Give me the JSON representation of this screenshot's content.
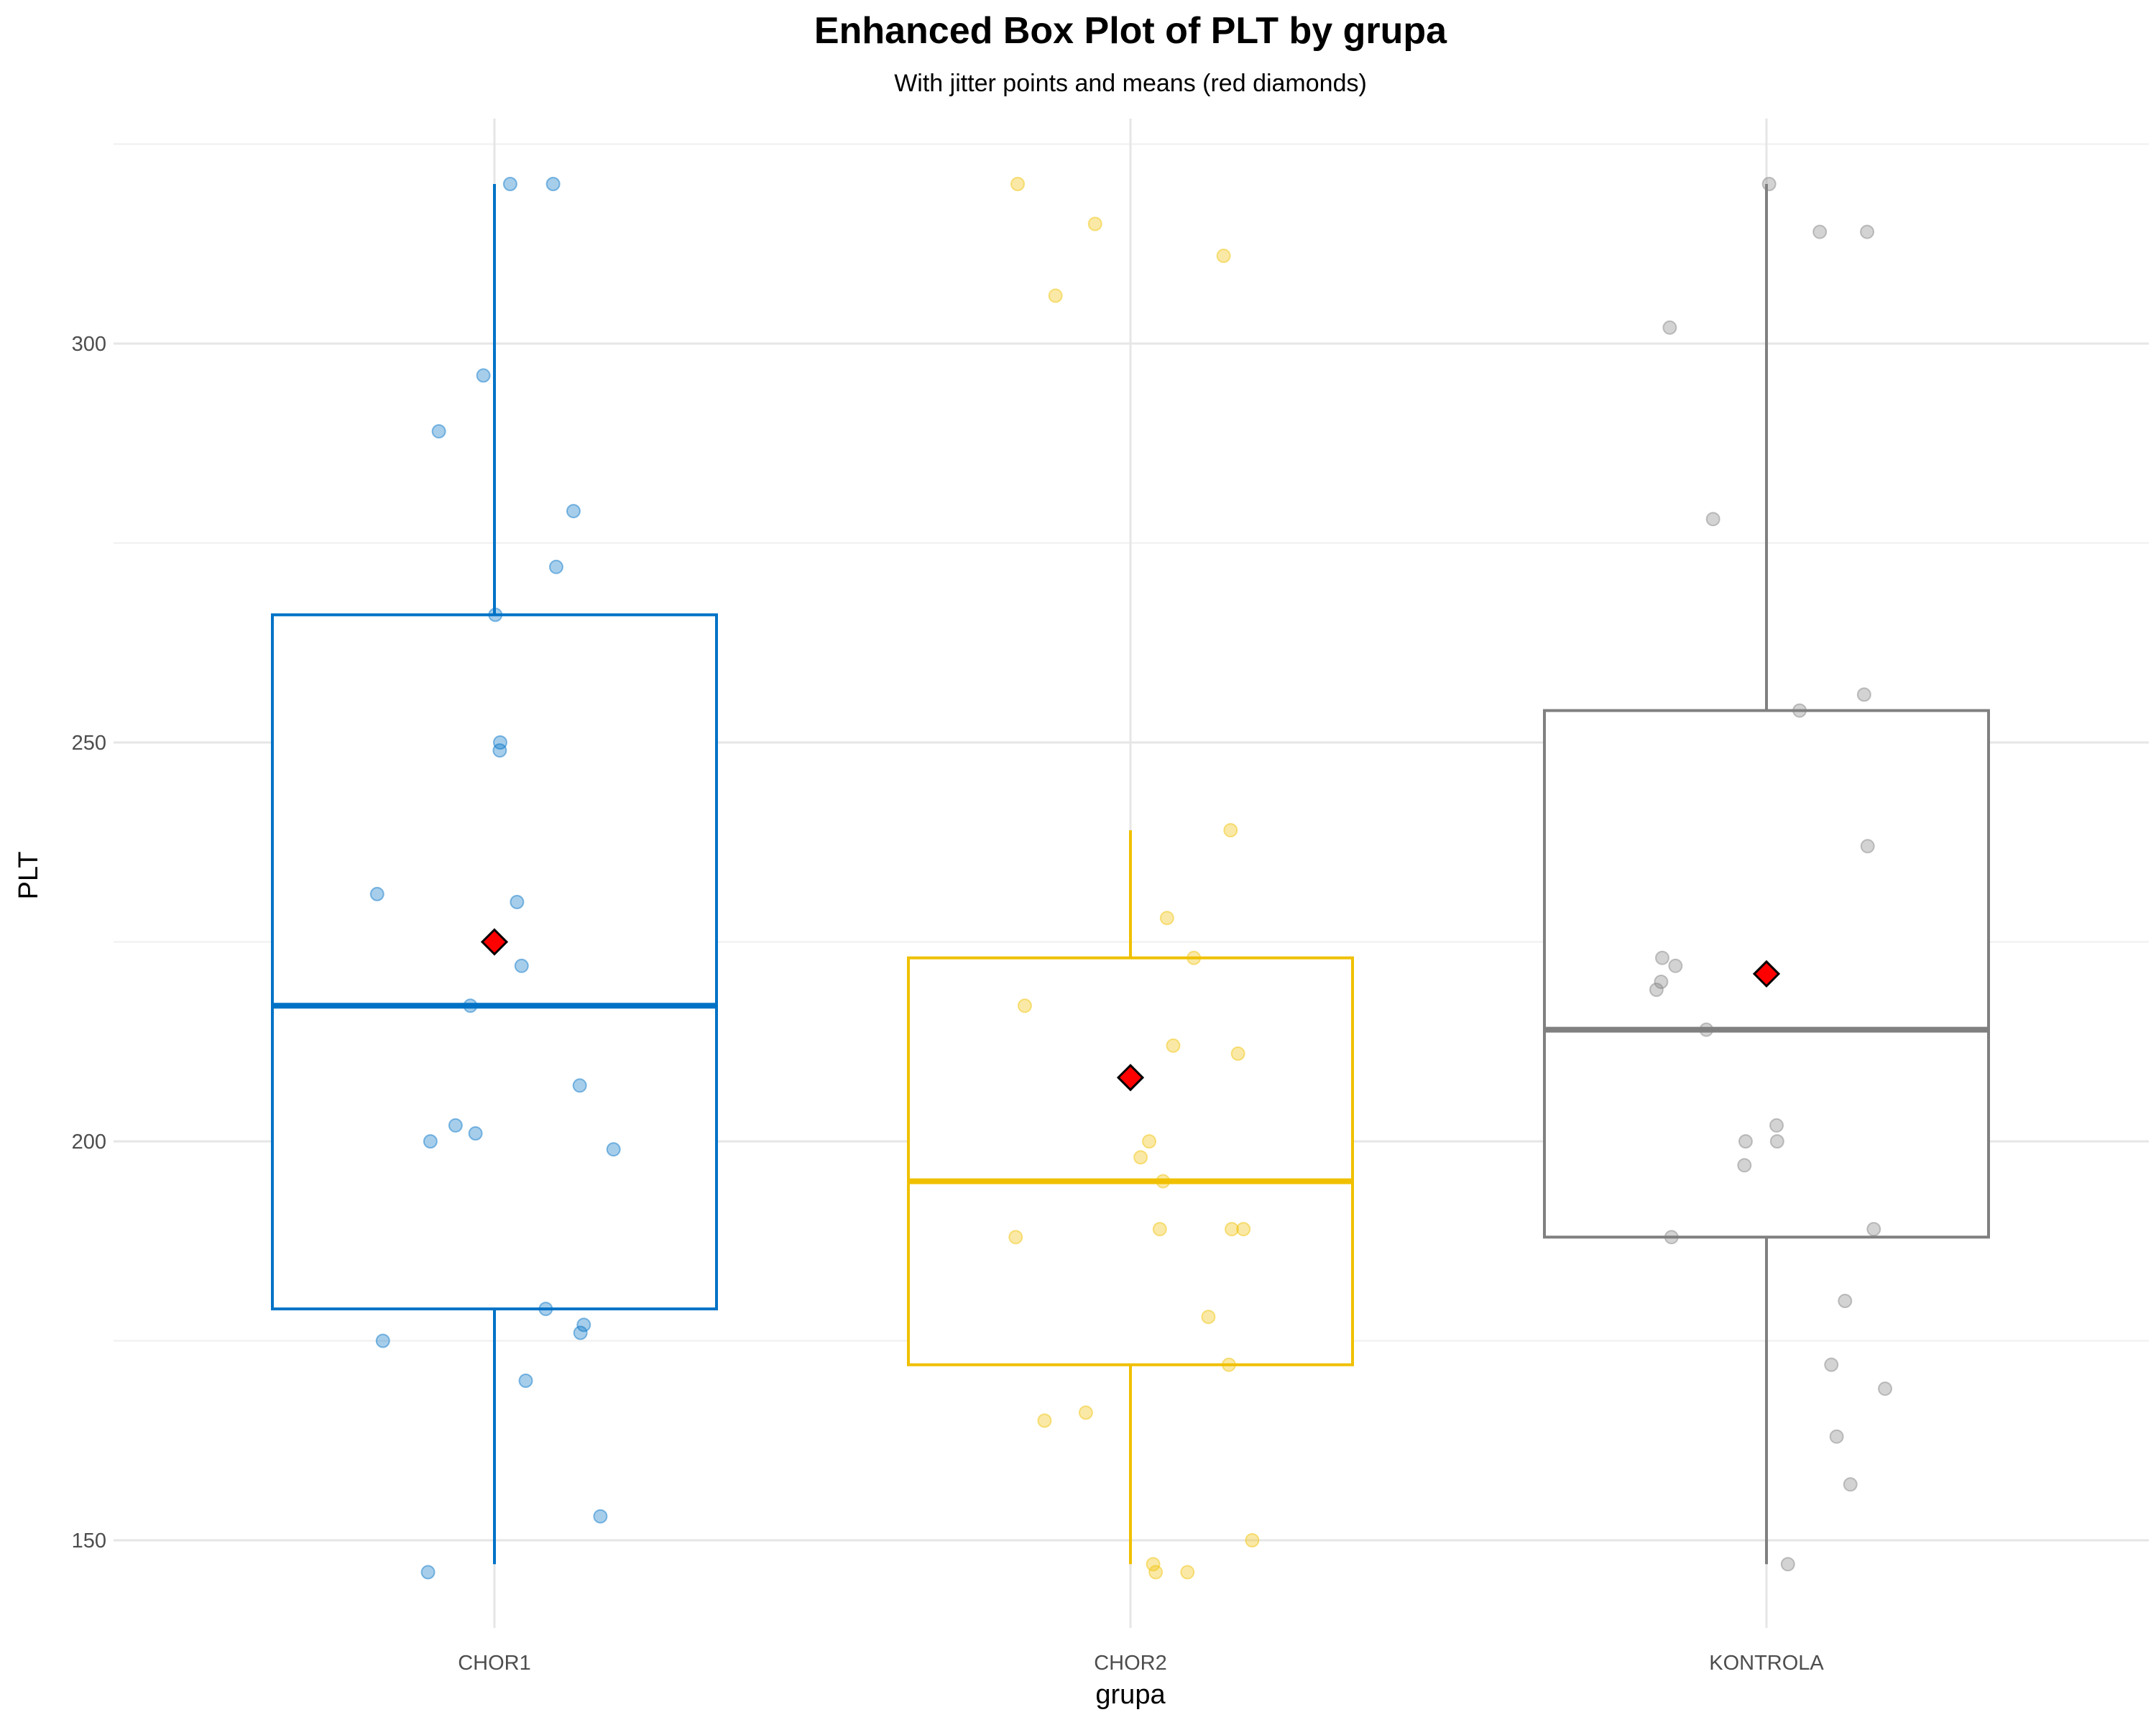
{
  "chart_data": {
    "type": "box",
    "title": "Enhanced Box Plot of PLT by grupa",
    "subtitle": "With jitter points and means (red diamonds)",
    "xlabel": "grupa",
    "ylabel": "PLT",
    "ylim": [
      138,
      326
    ],
    "yticks": [
      150,
      200,
      250,
      300
    ],
    "grid": true,
    "categories": [
      "CHOR1",
      "CHOR2",
      "KONTROLA"
    ],
    "colors": {
      "CHOR1": "#0072c6",
      "CHOR2": "#f0c000",
      "KONTROLA": "#808080",
      "mean": "#ff0000"
    },
    "series": [
      {
        "category": "CHOR1",
        "box": {
          "min": 147,
          "q1": 179,
          "median": 217,
          "q3": 266,
          "max": 320
        },
        "mean": 225,
        "points": [
          320,
          320,
          296,
          289,
          279,
          272,
          266,
          250,
          249,
          231,
          230,
          222,
          217,
          207,
          202,
          201,
          200,
          199,
          179,
          177,
          176,
          175,
          170,
          153,
          146
        ]
      },
      {
        "category": "CHOR2",
        "box": {
          "min": 147,
          "q1": 172,
          "median": 195,
          "q3": 223,
          "max": 239
        },
        "mean": 208,
        "points": [
          320,
          315,
          311,
          306,
          239,
          228,
          223,
          217,
          212,
          211,
          200,
          198,
          195,
          189,
          189,
          189,
          188,
          178,
          172,
          166,
          165,
          150,
          147,
          146,
          146
        ]
      },
      {
        "category": "KONTROLA",
        "box": {
          "min": 147,
          "q1": 188,
          "median": 214,
          "q3": 254,
          "max": 320
        },
        "mean": 221,
        "points": [
          320,
          314,
          314,
          302,
          278,
          256,
          254,
          237,
          223,
          222,
          220,
          219,
          214,
          202,
          200,
          200,
          197,
          189,
          188,
          180,
          172,
          169,
          163,
          157,
          147
        ]
      }
    ]
  }
}
